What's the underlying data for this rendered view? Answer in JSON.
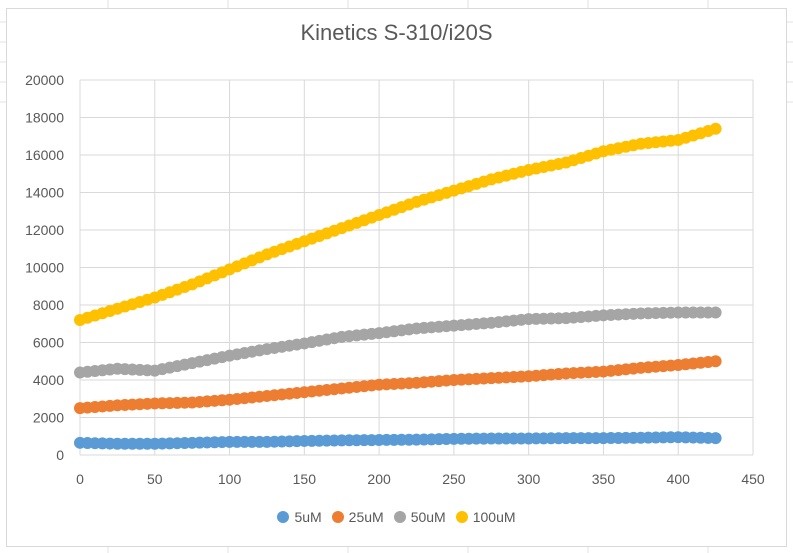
{
  "chart_data": {
    "type": "scatter",
    "title": "Kinetics S-310/i20S",
    "xlabel": "",
    "ylabel": "",
    "xlim": [
      0,
      450
    ],
    "ylim": [
      0,
      20000
    ],
    "xticks": [
      0,
      50,
      100,
      150,
      200,
      250,
      300,
      350,
      400,
      450
    ],
    "yticks": [
      0,
      2000,
      4000,
      6000,
      8000,
      10000,
      12000,
      14000,
      16000,
      18000,
      20000
    ],
    "grid": true,
    "legend_position": "bottom",
    "x": [
      0,
      25,
      50,
      75,
      100,
      125,
      150,
      175,
      200,
      225,
      250,
      275,
      300,
      325,
      350,
      375,
      400,
      425
    ],
    "series": [
      {
        "name": "5uM",
        "color": "#5B9BD5",
        "values": [
          650,
          600,
          600,
          650,
          700,
          700,
          750,
          780,
          800,
          820,
          860,
          880,
          880,
          900,
          900,
          920,
          950,
          900
        ]
      },
      {
        "name": "25uM",
        "color": "#ED7D31",
        "values": [
          2500,
          2650,
          2750,
          2800,
          2950,
          3150,
          3350,
          3550,
          3750,
          3850,
          4000,
          4100,
          4200,
          4350,
          4450,
          4650,
          4800,
          5000
        ]
      },
      {
        "name": "50uM",
        "color": "#A5A5A5",
        "values": [
          4400,
          4600,
          4500,
          4900,
          5300,
          5650,
          5950,
          6300,
          6500,
          6750,
          6900,
          7050,
          7250,
          7300,
          7450,
          7550,
          7600,
          7600
        ]
      },
      {
        "name": "100uM",
        "color": "#FFC000",
        "values": [
          7200,
          7800,
          8400,
          9100,
          9900,
          10700,
          11400,
          12100,
          12800,
          13500,
          14100,
          14700,
          15200,
          15600,
          16200,
          16600,
          16800,
          17400
        ]
      }
    ]
  }
}
